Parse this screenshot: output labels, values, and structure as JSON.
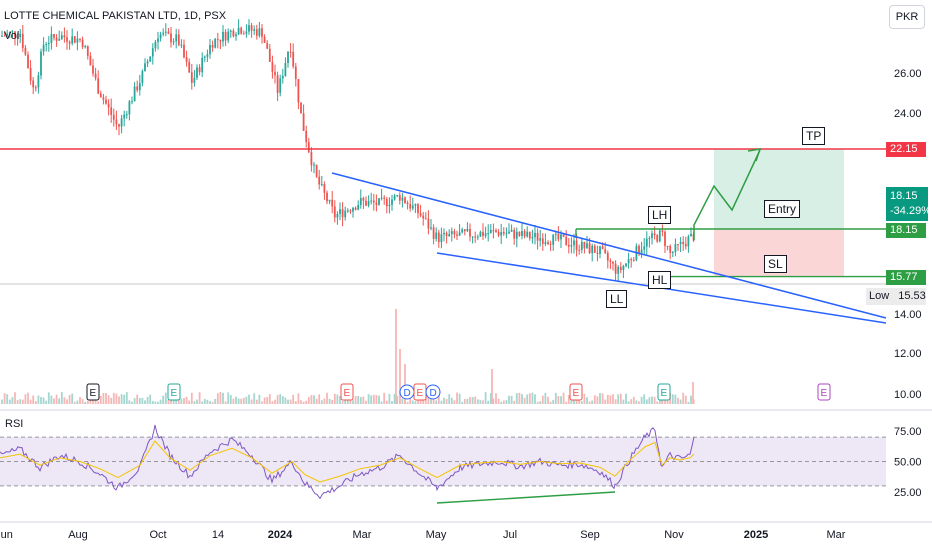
{
  "header": {
    "title": "LOTTE CHEMICAL PAKISTAN LTD, 1D, PSX",
    "vol_label": "Vol",
    "currency": "PKR",
    "rsi_label": "RSI"
  },
  "price_axis": {
    "ticks": [
      "26.00",
      "24.00",
      "14.00",
      "12.00",
      "10.00"
    ],
    "tags": {
      "resistance": "22.15",
      "last": "18.15",
      "change": "-34.29%",
      "entry": "18.15",
      "stop": "15.77"
    },
    "low_label": "Low",
    "low_value": "15.53"
  },
  "rsi_axis": {
    "ticks": [
      "75.00",
      "50.00",
      "25.00"
    ]
  },
  "time_axis": {
    "ticks": [
      "Jun",
      "Aug",
      "Oct",
      "14",
      "2024",
      "Mar",
      "May",
      "Jul",
      "Sep",
      "Nov",
      "2025",
      "Mar"
    ]
  },
  "annotations": {
    "tp": "TP",
    "entry": "Entry",
    "sl": "SL",
    "lh": "LH",
    "hl": "HL",
    "ll": "LL"
  },
  "event_markers": [
    "E",
    "E",
    "E",
    "D",
    "E",
    "D",
    "E",
    "E",
    "E"
  ],
  "colors": {
    "up": "#26a69a",
    "down": "#ef5350",
    "resistance": "#f23645",
    "trendline": "#2962ff",
    "level": "#2e9e44",
    "profit_zone": "#d8efe6",
    "loss_zone": "#fad6d6",
    "rsi_band": "#ede7f6",
    "rsi_line": "#7e57c2",
    "rsi_ma": "#f5c400"
  },
  "chart_data": {
    "type": "candlestick",
    "title": "LOTTE CHEMICAL PAKISTAN LTD, 1D, PSX",
    "currency": "PKR",
    "ylim": [
      9,
      28.5
    ],
    "key_levels": {
      "resistance": 22.15,
      "take_profit": 22.15,
      "entry": 18.15,
      "stop_loss": 15.77,
      "low": 15.53,
      "last": 18.15,
      "change_pct": -34.29
    },
    "path": [
      [
        0,
        27.8
      ],
      [
        20,
        28.0
      ],
      [
        34,
        25.0
      ],
      [
        44,
        27.5
      ],
      [
        60,
        27.8
      ],
      [
        82,
        27.6
      ],
      [
        98,
        25.2
      ],
      [
        118,
        23.2
      ],
      [
        142,
        25.8
      ],
      [
        158,
        27.9
      ],
      [
        178,
        27.6
      ],
      [
        192,
        25.5
      ],
      [
        212,
        27.5
      ],
      [
        238,
        28.2
      ],
      [
        262,
        28.0
      ],
      [
        278,
        25.0
      ],
      [
        290,
        27.5
      ],
      [
        302,
        23.5
      ],
      [
        316,
        20.7
      ],
      [
        335,
        18.8
      ],
      [
        360,
        19.5
      ],
      [
        380,
        19.4
      ],
      [
        400,
        19.8
      ],
      [
        420,
        18.9
      ],
      [
        437,
        17.7
      ],
      [
        470,
        17.9
      ],
      [
        500,
        18.0
      ],
      [
        525,
        17.8
      ],
      [
        560,
        17.6
      ],
      [
        600,
        17.0
      ],
      [
        618,
        16.0
      ],
      [
        645,
        17.5
      ],
      [
        662,
        17.9
      ],
      [
        670,
        16.9
      ],
      [
        690,
        17.7
      ],
      [
        694,
        17.8
      ]
    ],
    "volume_spikes": [
      [
        396,
        0.95
      ],
      [
        400,
        0.55
      ],
      [
        405,
        0.4
      ],
      [
        492,
        0.35
      ],
      [
        662,
        0.2
      ],
      [
        693,
        0.22
      ]
    ],
    "rsi": {
      "ylim": [
        15,
        82
      ],
      "band": [
        30,
        70
      ],
      "points": [
        [
          0,
          55
        ],
        [
          20,
          60
        ],
        [
          40,
          45
        ],
        [
          60,
          55
        ],
        [
          80,
          50
        ],
        [
          100,
          40
        ],
        [
          118,
          28
        ],
        [
          140,
          45
        ],
        [
          155,
          78
        ],
        [
          170,
          55
        ],
        [
          190,
          38
        ],
        [
          210,
          58
        ],
        [
          232,
          68
        ],
        [
          252,
          55
        ],
        [
          272,
          34
        ],
        [
          292,
          50
        ],
        [
          305,
          32
        ],
        [
          320,
          22
        ],
        [
          340,
          30
        ],
        [
          360,
          40
        ],
        [
          380,
          45
        ],
        [
          400,
          55
        ],
        [
          420,
          40
        ],
        [
          437,
          28
        ],
        [
          460,
          45
        ],
        [
          480,
          48
        ],
        [
          500,
          50
        ],
        [
          520,
          46
        ],
        [
          540,
          50
        ],
        [
          560,
          47
        ],
        [
          580,
          48
        ],
        [
          600,
          42
        ],
        [
          615,
          30
        ],
        [
          630,
          52
        ],
        [
          645,
          70
        ],
        [
          655,
          76
        ],
        [
          662,
          45
        ],
        [
          670,
          55
        ],
        [
          680,
          52
        ],
        [
          690,
          55
        ],
        [
          694,
          70
        ]
      ]
    }
  }
}
